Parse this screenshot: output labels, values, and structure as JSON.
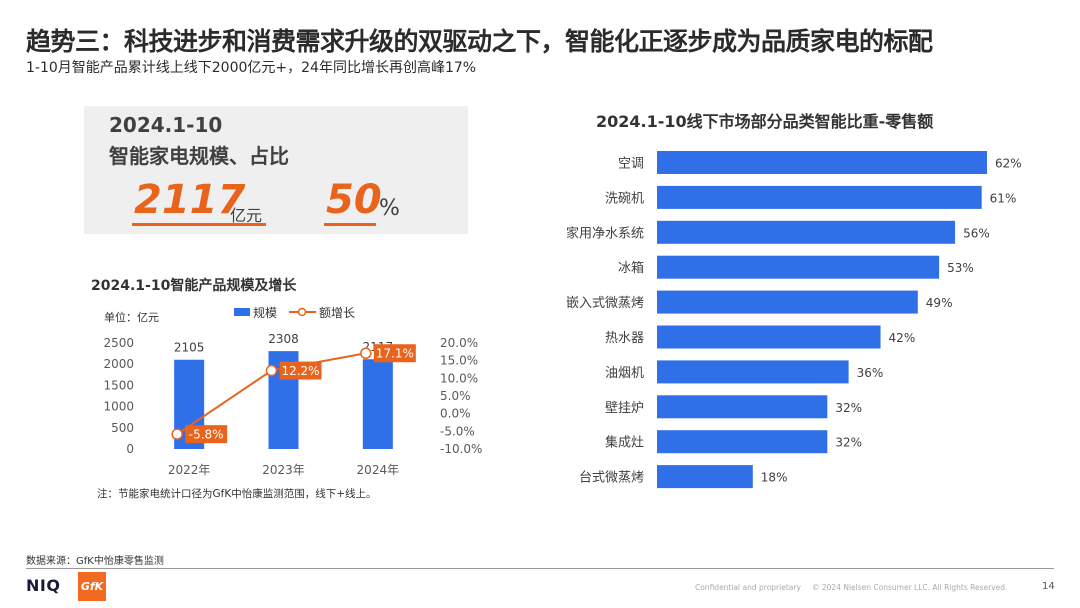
{
  "header": {
    "title": "趋势三：科技进步和消费需求升级的双驱动之下，智能化正逐步成为品质家电的标配",
    "subtitle": "1-10月智能产品累计线上线下2000亿元+，24年同比增长再创高峰17%"
  },
  "kpi": {
    "period": "2024.1-10",
    "heading": "智能家电规模、占比",
    "scale_value": "2117",
    "scale_unit": "亿元",
    "share_value": "50",
    "share_unit": "%"
  },
  "left_chart": {
    "title": "2024.1-10智能产品规模及增长",
    "unit_label": "单位：亿元",
    "footnote": "注：节能家电统计口径为GfK中怡康监测范围，线下+线上。"
  },
  "right_chart": {
    "title": "2024.1-10线下市场部分品类智能比重-零售额"
  },
  "footer": {
    "source": "数据来源：GfK中怡康零售监测",
    "niq": "NIQ",
    "gfk": "GfK",
    "confidential": "Confidential and proprietary",
    "copyright": "© 2024 Nielsen Consumer LLC. All Rights Reserved.",
    "page": "14"
  },
  "chart_data": [
    {
      "type": "bar",
      "title": "2024.1-10智能产品规模及增长",
      "categories": [
        "2022年",
        "2023年",
        "2024年"
      ],
      "series": [
        {
          "name": "规模",
          "kind": "bar",
          "axis": "left",
          "values": [
            2105,
            2308,
            2117
          ],
          "labels": [
            "2105",
            "2308",
            "2117"
          ],
          "color": "#2f6fe8"
        },
        {
          "name": "额增长",
          "kind": "line",
          "axis": "right",
          "values": [
            -5.8,
            12.2,
            17.1
          ],
          "labels": [
            "-5.8%",
            "12.2%",
            "17.1%"
          ],
          "color": "#e8631c"
        }
      ],
      "left_axis": {
        "ylim": [
          0,
          2500
        ],
        "ticks": [
          "0",
          "500",
          "1000",
          "1500",
          "2000",
          "2500"
        ]
      },
      "right_axis": {
        "ylim": [
          -10,
          20
        ],
        "ticks": [
          "20.0%",
          "15.0%",
          "10.0%",
          "5.0%",
          "0.0%",
          "-5.0%",
          "-10.0%"
        ]
      },
      "legend": "top"
    },
    {
      "type": "bar",
      "orientation": "horizontal",
      "title": "2024.1-10线下市场部分品类智能比重-零售额",
      "categories": [
        "空调",
        "洗碗机",
        "家用净水系统",
        "冰箱",
        "嵌入式微蒸烤",
        "热水器",
        "油烟机",
        "壁挂炉",
        "集成灶",
        "台式微蒸烤"
      ],
      "values": [
        62,
        61,
        56,
        53,
        49,
        42,
        36,
        32,
        32,
        18
      ],
      "labels": [
        "62%",
        "61%",
        "56%",
        "53%",
        "49%",
        "42%",
        "36%",
        "32%",
        "32%",
        "18%"
      ],
      "color": "#2f6fe8"
    }
  ]
}
